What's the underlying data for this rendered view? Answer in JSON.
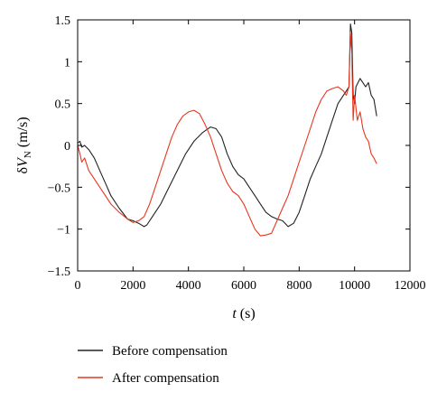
{
  "chart_data": {
    "type": "line",
    "xlabel": "t (s)",
    "ylabel": "δV_N (m/s)",
    "xlim": [
      0,
      12000
    ],
    "ylim": [
      -1.5,
      1.5
    ],
    "xticks": [
      "0",
      "2000",
      "4000",
      "6000",
      "8000",
      "10000",
      "12000"
    ],
    "yticks": [
      "1.5",
      "1",
      "0.5",
      "0",
      "−0.5",
      "−1",
      "−1.5"
    ],
    "grid": false,
    "legend_position": "below-left",
    "series": [
      {
        "name": "Before compensation",
        "color": "#222222",
        "x": [
          0,
          80,
          150,
          250,
          400,
          600,
          800,
          1000,
          1200,
          1500,
          1800,
          2000,
          2200,
          2400,
          2500,
          2700,
          3000,
          3300,
          3600,
          3900,
          4200,
          4500,
          4800,
          5000,
          5200,
          5400,
          5600,
          5800,
          6000,
          6200,
          6400,
          6600,
          6800,
          7000,
          7200,
          7400,
          7600,
          7800,
          8000,
          8200,
          8400,
          8600,
          8800,
          9000,
          9200,
          9400,
          9600,
          9700,
          9800,
          9850,
          9900,
          9950,
          10000,
          10050,
          10200,
          10400,
          10500,
          10600,
          10700,
          10800
        ],
        "y": [
          0.03,
          0.05,
          -0.02,
          0.0,
          -0.05,
          -0.15,
          -0.3,
          -0.45,
          -0.6,
          -0.75,
          -0.88,
          -0.9,
          -0.93,
          -0.97,
          -0.95,
          -0.85,
          -0.7,
          -0.5,
          -0.3,
          -0.1,
          0.05,
          0.15,
          0.22,
          0.2,
          0.1,
          -0.1,
          -0.25,
          -0.35,
          -0.4,
          -0.5,
          -0.6,
          -0.7,
          -0.8,
          -0.85,
          -0.88,
          -0.9,
          -0.97,
          -0.93,
          -0.8,
          -0.6,
          -0.4,
          -0.25,
          -0.1,
          0.1,
          0.3,
          0.5,
          0.6,
          0.65,
          0.7,
          1.45,
          1.35,
          0.6,
          0.5,
          0.7,
          0.8,
          0.7,
          0.75,
          0.6,
          0.55,
          0.35
        ]
      },
      {
        "name": "After compensation",
        "color": "#e8361f",
        "x": [
          0,
          80,
          150,
          250,
          400,
          600,
          800,
          1000,
          1200,
          1500,
          1800,
          2000,
          2200,
          2400,
          2600,
          2800,
          3000,
          3200,
          3400,
          3600,
          3800,
          4000,
          4200,
          4400,
          4600,
          4800,
          5000,
          5200,
          5400,
          5600,
          5800,
          6000,
          6200,
          6400,
          6600,
          6800,
          7000,
          7200,
          7400,
          7600,
          7800,
          8000,
          8200,
          8400,
          8600,
          8800,
          9000,
          9200,
          9400,
          9600,
          9700,
          9800,
          9850,
          9900,
          9950,
          10000,
          10100,
          10200,
          10300,
          10400,
          10500,
          10600,
          10700,
          10800
        ],
        "y": [
          0.0,
          -0.1,
          -0.2,
          -0.15,
          -0.3,
          -0.4,
          -0.5,
          -0.6,
          -0.7,
          -0.8,
          -0.88,
          -0.92,
          -0.9,
          -0.85,
          -0.7,
          -0.5,
          -0.3,
          -0.1,
          0.1,
          0.25,
          0.35,
          0.4,
          0.42,
          0.38,
          0.25,
          0.1,
          -0.1,
          -0.3,
          -0.45,
          -0.55,
          -0.6,
          -0.7,
          -0.85,
          -1.0,
          -1.08,
          -1.07,
          -1.05,
          -0.9,
          -0.75,
          -0.6,
          -0.4,
          -0.2,
          0.0,
          0.2,
          0.4,
          0.55,
          0.65,
          0.68,
          0.7,
          0.65,
          0.6,
          0.7,
          1.35,
          1.1,
          0.3,
          0.6,
          0.3,
          0.4,
          0.2,
          0.1,
          0.05,
          -0.1,
          -0.15,
          -0.22
        ]
      }
    ]
  }
}
